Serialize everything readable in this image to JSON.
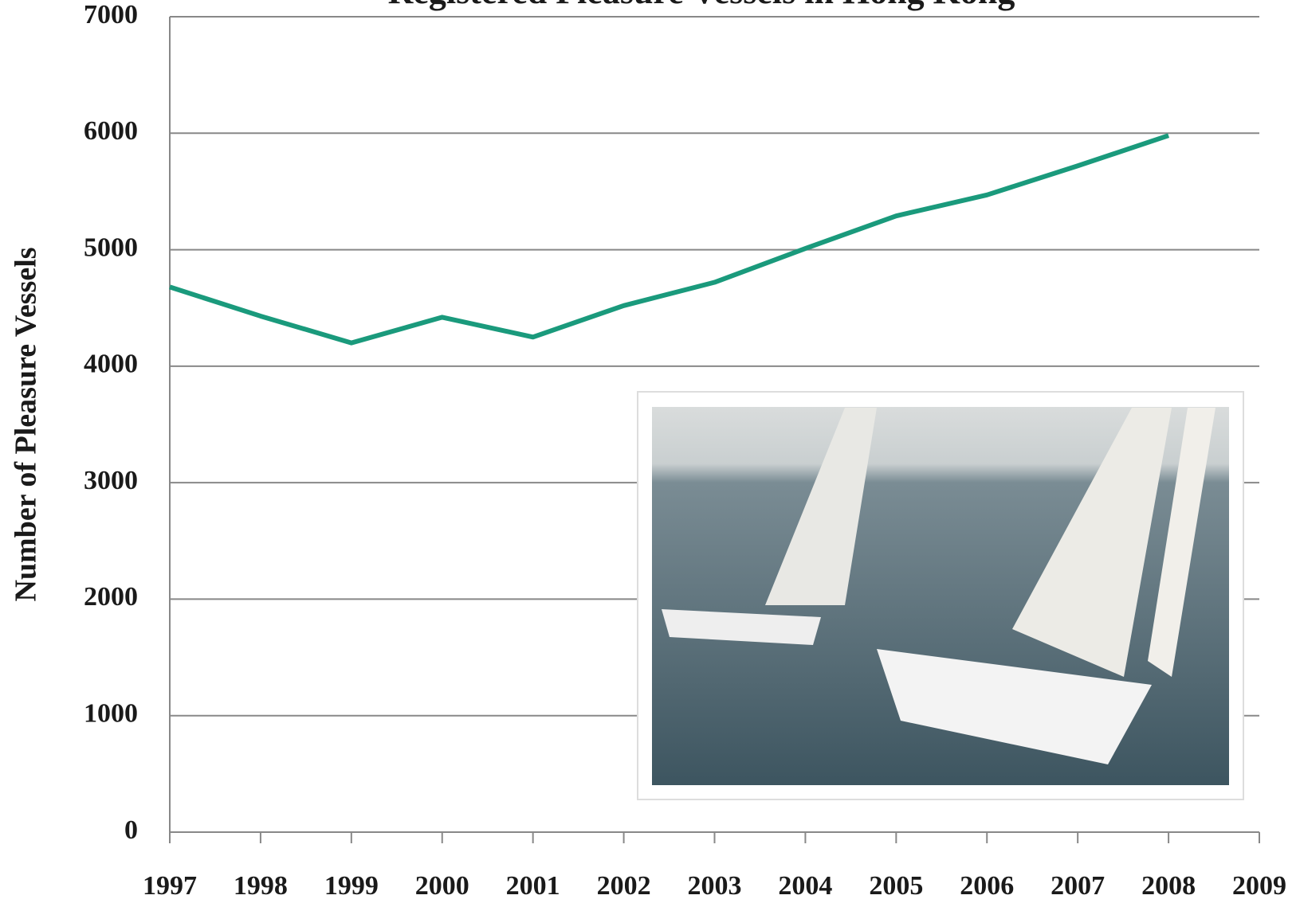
{
  "chart_data": {
    "type": "line",
    "title": "Registered Pleasure Vessels in Hong Kong",
    "y_label": "Number of Pleasure Vessels",
    "x": [
      1997,
      1998,
      1999,
      2000,
      2001,
      2002,
      2003,
      2004,
      2005,
      2006,
      2007,
      2008
    ],
    "series": [
      {
        "name": "Registered Pleasure Vessels",
        "color": "#1a9a7c",
        "values": [
          4680,
          4430,
          4200,
          4420,
          4250,
          4520,
          4720,
          5010,
          5290,
          5470,
          5720,
          5980
        ]
      }
    ],
    "xlim": [
      1997,
      2009
    ],
    "xticks": [
      1997,
      1998,
      1999,
      2000,
      2001,
      2002,
      2003,
      2004,
      2005,
      2006,
      2007,
      2008,
      2009
    ],
    "ylim": [
      0,
      7000
    ],
    "yticks": [
      0,
      1000,
      2000,
      3000,
      4000,
      5000,
      6000,
      7000
    ],
    "grid": true
  }
}
